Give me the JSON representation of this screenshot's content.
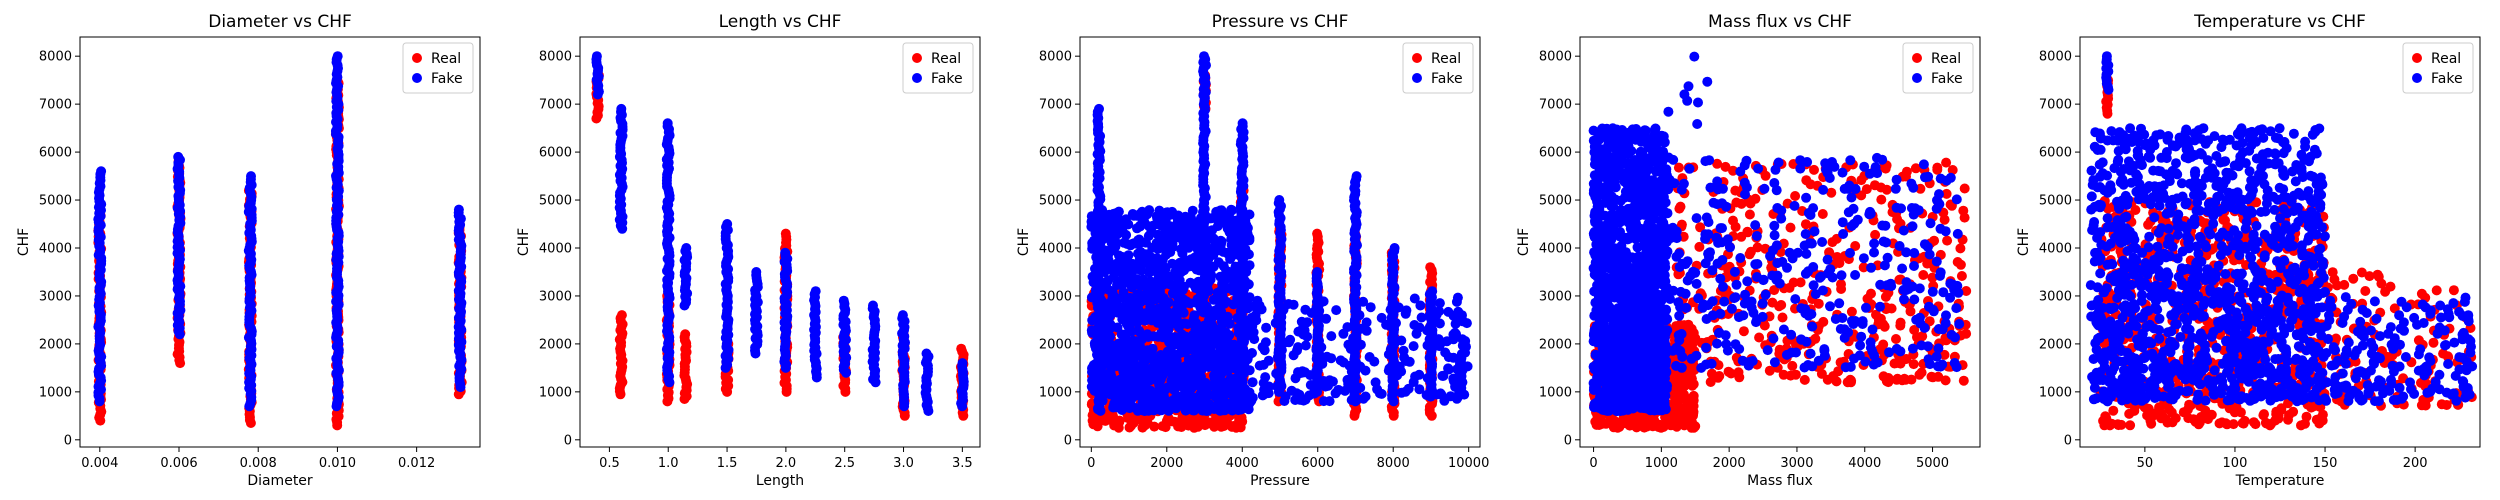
{
  "colors": {
    "real": "#ff0000",
    "fake": "#0000ff",
    "axis": "#000000",
    "background": "#ffffff"
  },
  "chart_data": [
    {
      "type": "scatter",
      "title": "Diameter vs CHF",
      "xlabel": "Diameter",
      "ylabel": "CHF",
      "xlim": [
        0.0035,
        0.0136
      ],
      "ylim": [
        -150,
        8400
      ],
      "xticks": [
        0.004,
        0.006,
        0.008,
        0.01,
        0.012
      ],
      "xtick_labels": [
        "0.004",
        "0.006",
        "0.008",
        "0.010",
        "0.012"
      ],
      "yticks": [
        0,
        1000,
        2000,
        3000,
        4000,
        5000,
        6000,
        7000,
        8000
      ],
      "ytick_labels": [
        "0",
        "1000",
        "2000",
        "3000",
        "4000",
        "5000",
        "6000",
        "7000",
        "8000"
      ],
      "legend": {
        "placement": "top-right",
        "entries": [
          "Real",
          "Fake"
        ]
      },
      "series": [
        {
          "name": "Real",
          "segments": [
            {
              "x": 0.004,
              "y0": 400,
              "y1": 4800
            },
            {
              "x": 0.006,
              "y0": 1600,
              "y1": 5800
            },
            {
              "x": 0.0078,
              "y0": 350,
              "y1": 5200
            },
            {
              "x": 0.01,
              "y0": 300,
              "y1": 7500
            },
            {
              "x": 0.0131,
              "y0": 950,
              "y1": 4500
            }
          ]
        },
        {
          "name": "Fake",
          "segments": [
            {
              "x": 0.004,
              "y0": 800,
              "y1": 5600
            },
            {
              "x": 0.006,
              "y0": 2200,
              "y1": 5900
            },
            {
              "x": 0.0078,
              "y0": 700,
              "y1": 5500
            },
            {
              "x": 0.01,
              "y0": 700,
              "y1": 8000
            },
            {
              "x": 0.0131,
              "y0": 1100,
              "y1": 4800
            }
          ]
        }
      ]
    },
    {
      "type": "scatter",
      "title": "Length vs CHF",
      "xlabel": "Length",
      "ylabel": "CHF",
      "xlim": [
        0.25,
        3.65
      ],
      "ylim": [
        -150,
        8400
      ],
      "xticks": [
        0.5,
        1.0,
        1.5,
        2.0,
        2.5,
        3.0,
        3.5
      ],
      "xtick_labels": [
        "0.5",
        "1.0",
        "1.5",
        "2.0",
        "2.5",
        "3.0",
        "3.5"
      ],
      "yticks": [
        0,
        1000,
        2000,
        3000,
        4000,
        5000,
        6000,
        7000,
        8000
      ],
      "ytick_labels": [
        "0",
        "1000",
        "2000",
        "3000",
        "4000",
        "5000",
        "6000",
        "7000",
        "8000"
      ],
      "legend": {
        "placement": "top-right",
        "entries": [
          "Real",
          "Fake"
        ]
      },
      "series": [
        {
          "name": "Real",
          "segments": [
            {
              "x": 0.4,
              "y0": 6700,
              "y1": 7600
            },
            {
              "x": 0.6,
              "y0": 950,
              "y1": 2600
            },
            {
              "x": 1.0,
              "y0": 800,
              "y1": 3000
            },
            {
              "x": 1.15,
              "y0": 850,
              "y1": 2200
            },
            {
              "x": 1.5,
              "y0": 1000,
              "y1": 2000
            },
            {
              "x": 2.0,
              "y0": 1000,
              "y1": 4300
            },
            {
              "x": 2.5,
              "y0": 1000,
              "y1": 2200
            },
            {
              "x": 3.0,
              "y0": 500,
              "y1": 2200
            },
            {
              "x": 3.5,
              "y0": 500,
              "y1": 1900
            }
          ]
        },
        {
          "name": "Fake",
          "segments": [
            {
              "x": 0.4,
              "y0": 7200,
              "y1": 8000
            },
            {
              "x": 0.6,
              "y0": 4400,
              "y1": 6900
            },
            {
              "x": 1.0,
              "y0": 1200,
              "y1": 6600
            },
            {
              "x": 1.15,
              "y0": 2800,
              "y1": 4000
            },
            {
              "x": 1.5,
              "y0": 1500,
              "y1": 4500
            },
            {
              "x": 1.75,
              "y0": 1800,
              "y1": 3500
            },
            {
              "x": 2.0,
              "y0": 1500,
              "y1": 3900
            },
            {
              "x": 2.25,
              "y0": 1300,
              "y1": 3100
            },
            {
              "x": 2.5,
              "y0": 1400,
              "y1": 2900
            },
            {
              "x": 2.75,
              "y0": 1200,
              "y1": 2800
            },
            {
              "x": 3.0,
              "y0": 700,
              "y1": 2600
            },
            {
              "x": 3.2,
              "y0": 600,
              "y1": 1800
            },
            {
              "x": 3.5,
              "y0": 700,
              "y1": 1600
            }
          ]
        }
      ]
    },
    {
      "type": "scatter",
      "title": "Pressure vs CHF",
      "xlabel": "Pressure",
      "ylabel": "CHF",
      "xlim": [
        -300,
        10300
      ],
      "ylim": [
        -150,
        8400
      ],
      "xticks": [
        0,
        2000,
        4000,
        6000,
        8000,
        10000
      ],
      "xtick_labels": [
        "0",
        "2000",
        "4000",
        "6000",
        "8000",
        "10000"
      ],
      "yticks": [
        0,
        1000,
        2000,
        3000,
        4000,
        5000,
        6000,
        7000,
        8000
      ],
      "ytick_labels": [
        "0",
        "1000",
        "2000",
        "3000",
        "4000",
        "5000",
        "6000",
        "7000",
        "8000"
      ],
      "legend": {
        "placement": "top-right",
        "entries": [
          "Real",
          "Fake"
        ]
      },
      "series": [
        {
          "name": "Real",
          "segments": [
            {
              "x": 3000,
              "y0": 6900,
              "y1": 7600
            },
            {
              "x": 4000,
              "y0": 900,
              "y1": 5200
            },
            {
              "x": 5000,
              "y0": 800,
              "y1": 4400
            },
            {
              "x": 6000,
              "y0": 800,
              "y1": 4300
            },
            {
              "x": 7000,
              "y0": 500,
              "y1": 4300
            },
            {
              "x": 8000,
              "y0": 500,
              "y1": 3900
            },
            {
              "x": 9000,
              "y0": 500,
              "y1": 3600
            }
          ],
          "clusters": [
            {
              "x0": 0,
              "x1": 4000,
              "y0": 250,
              "y1": 3200,
              "n": 650
            }
          ]
        },
        {
          "name": "Fake",
          "segments": [
            {
              "x": 200,
              "y0": 1000,
              "y1": 6900
            },
            {
              "x": 3000,
              "y0": 3000,
              "y1": 8000
            },
            {
              "x": 4000,
              "y0": 1000,
              "y1": 6600
            },
            {
              "x": 5000,
              "y0": 1000,
              "y1": 5000
            },
            {
              "x": 6000,
              "y0": 1000,
              "y1": 3500
            },
            {
              "x": 7000,
              "y0": 800,
              "y1": 5500
            },
            {
              "x": 8000,
              "y0": 800,
              "y1": 4000
            },
            {
              "x": 9000,
              "y0": 900,
              "y1": 3100
            },
            {
              "x": 9800,
              "y0": 1200,
              "y1": 1700
            }
          ],
          "clusters": [
            {
              "x0": 0,
              "x1": 4200,
              "y0": 600,
              "y1": 4800,
              "n": 1400
            },
            {
              "x0": 4200,
              "x1": 10000,
              "y0": 800,
              "y1": 3000,
              "n": 250
            }
          ]
        }
      ]
    },
    {
      "type": "scatter",
      "title": "Mass flux vs CHF",
      "xlabel": "Mass flux",
      "ylabel": "CHF",
      "xlim": [
        -200,
        5700
      ],
      "ylim": [
        -150,
        8400
      ],
      "xticks": [
        0,
        1000,
        2000,
        3000,
        4000,
        5000
      ],
      "xtick_labels": [
        "0",
        "1000",
        "2000",
        "3000",
        "4000",
        "5000"
      ],
      "yticks": [
        0,
        1000,
        2000,
        3000,
        4000,
        5000,
        6000,
        7000,
        8000
      ],
      "ytick_labels": [
        "0",
        "1000",
        "2000",
        "3000",
        "4000",
        "5000",
        "6000",
        "7000",
        "8000"
      ],
      "legend": {
        "placement": "top-right",
        "entries": [
          "Real",
          "Fake"
        ]
      },
      "series": [
        {
          "name": "Real",
          "segments": [],
          "clusters": [
            {
              "x0": 0,
              "x1": 1500,
              "y0": 250,
              "y1": 2400,
              "n": 550
            },
            {
              "x0": 1200,
              "x1": 5500,
              "y0": 1200,
              "y1": 5800,
              "n": 420
            }
          ]
        },
        {
          "name": "Fake",
          "segments": [],
          "clusters": [
            {
              "x0": 0,
              "x1": 1100,
              "y0": 600,
              "y1": 6500,
              "n": 1300
            },
            {
              "x0": 1000,
              "x1": 5400,
              "y0": 1500,
              "y1": 5900,
              "n": 380
            },
            {
              "x0": 1100,
              "x1": 1700,
              "y0": 6500,
              "y1": 8000,
              "n": 8
            }
          ]
        }
      ]
    },
    {
      "type": "scatter",
      "title": "Temperature vs CHF",
      "xlabel": "Temperature",
      "ylabel": "CHF",
      "xlim": [
        14,
        236
      ],
      "ylim": [
        -150,
        8400
      ],
      "xticks": [
        50,
        100,
        150,
        200
      ],
      "xtick_labels": [
        "50",
        "100",
        "150",
        "200"
      ],
      "yticks": [
        0,
        1000,
        2000,
        3000,
        4000,
        5000,
        6000,
        7000,
        8000
      ],
      "ytick_labels": [
        "0",
        "1000",
        "2000",
        "3000",
        "4000",
        "5000",
        "6000",
        "7000",
        "8000"
      ],
      "legend": {
        "placement": "top-right",
        "entries": [
          "Real",
          "Fake"
        ]
      },
      "series": [
        {
          "name": "Real",
          "segments": [
            {
              "x": 29,
              "y0": 6800,
              "y1": 7500
            }
          ],
          "clusters": [
            {
              "x0": 25,
              "x1": 150,
              "y0": 300,
              "y1": 5000,
              "n": 650
            },
            {
              "x0": 150,
              "x1": 232,
              "y0": 700,
              "y1": 3500,
              "n": 120
            }
          ]
        },
        {
          "name": "Fake",
          "segments": [
            {
              "x": 29,
              "y0": 7300,
              "y1": 8000
            }
          ],
          "clusters": [
            {
              "x0": 20,
              "x1": 150,
              "y0": 800,
              "y1": 6500,
              "n": 1300
            },
            {
              "x0": 150,
              "x1": 232,
              "y0": 800,
              "y1": 3000,
              "n": 180
            }
          ]
        }
      ]
    }
  ]
}
